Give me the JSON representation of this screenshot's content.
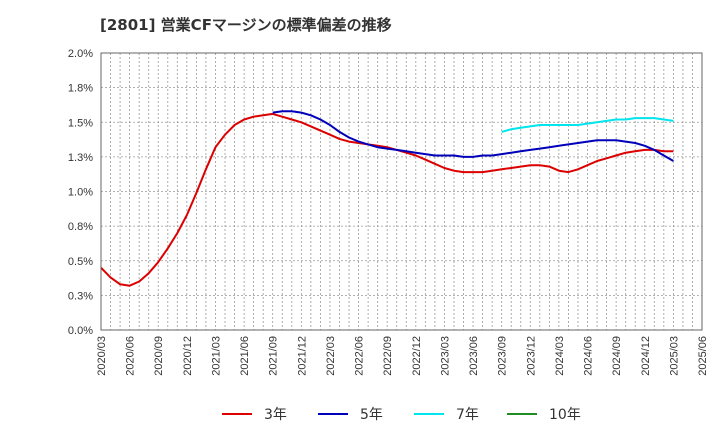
{
  "chart_data": {
    "type": "line",
    "title": "[2801]  営業CFマージンの標準偏差の推移",
    "xlabel": "",
    "ylabel": "",
    "ylim": [
      0.0,
      2.0
    ],
    "y_ticks": [
      "0.0%",
      "0.3%",
      "0.5%",
      "0.8%",
      "1.0%",
      "1.3%",
      "1.5%",
      "1.8%",
      "2.0%"
    ],
    "x_ticks": [
      "2020/03",
      "2020/06",
      "2020/09",
      "2020/12",
      "2021/03",
      "2021/06",
      "2021/09",
      "2021/12",
      "2022/03",
      "2022/06",
      "2022/09",
      "2022/12",
      "2023/03",
      "2023/06",
      "2023/09",
      "2023/12",
      "2024/03",
      "2024/06",
      "2024/09",
      "2024/12",
      "2025/03",
      "2025/06"
    ],
    "grid": true,
    "legend_position": "bottom",
    "series": [
      {
        "name": "3年",
        "color": "#dd0000",
        "x": [
          "2020/03",
          "2020/04",
          "2020/05",
          "2020/06",
          "2020/07",
          "2020/08",
          "2020/09",
          "2020/10",
          "2020/11",
          "2020/12",
          "2021/01",
          "2021/02",
          "2021/03",
          "2021/04",
          "2021/05",
          "2021/06",
          "2021/07",
          "2021/08",
          "2021/09",
          "2021/10",
          "2021/11",
          "2021/12",
          "2022/01",
          "2022/02",
          "2022/03",
          "2022/04",
          "2022/05",
          "2022/06",
          "2022/07",
          "2022/08",
          "2022/09",
          "2022/10",
          "2022/11",
          "2022/12",
          "2023/01",
          "2023/02",
          "2023/03",
          "2023/04",
          "2023/05",
          "2023/06",
          "2023/07",
          "2023/08",
          "2023/09",
          "2023/10",
          "2023/11",
          "2023/12",
          "2024/01",
          "2024/02",
          "2024/03",
          "2024/04",
          "2024/05",
          "2024/06",
          "2024/07",
          "2024/08",
          "2024/09",
          "2024/10",
          "2024/11",
          "2024/12",
          "2025/01",
          "2025/02",
          "2025/03"
        ],
        "values": [
          0.45,
          0.38,
          0.33,
          0.32,
          0.35,
          0.41,
          0.49,
          0.59,
          0.7,
          0.83,
          0.99,
          1.16,
          1.32,
          1.41,
          1.48,
          1.52,
          1.54,
          1.55,
          1.56,
          1.54,
          1.52,
          1.5,
          1.47,
          1.44,
          1.41,
          1.38,
          1.36,
          1.35,
          1.34,
          1.33,
          1.32,
          1.3,
          1.28,
          1.26,
          1.23,
          1.2,
          1.17,
          1.15,
          1.14,
          1.14,
          1.14,
          1.15,
          1.16,
          1.17,
          1.18,
          1.19,
          1.19,
          1.18,
          1.15,
          1.14,
          1.16,
          1.19,
          1.22,
          1.24,
          1.26,
          1.28,
          1.29,
          1.3,
          1.3,
          1.29,
          1.29
        ]
      },
      {
        "name": "5年",
        "color": "#0000bb",
        "x": [
          "2021/09",
          "2021/10",
          "2021/11",
          "2021/12",
          "2022/01",
          "2022/02",
          "2022/03",
          "2022/04",
          "2022/05",
          "2022/06",
          "2022/07",
          "2022/08",
          "2022/09",
          "2022/10",
          "2022/11",
          "2022/12",
          "2023/01",
          "2023/02",
          "2023/03",
          "2023/04",
          "2023/05",
          "2023/06",
          "2023/07",
          "2023/08",
          "2023/09",
          "2023/10",
          "2023/11",
          "2023/12",
          "2024/01",
          "2024/02",
          "2024/03",
          "2024/04",
          "2024/05",
          "2024/06",
          "2024/07",
          "2024/08",
          "2024/09",
          "2024/10",
          "2024/11",
          "2024/12",
          "2025/01",
          "2025/02",
          "2025/03"
        ],
        "values": [
          1.57,
          1.58,
          1.58,
          1.57,
          1.55,
          1.52,
          1.48,
          1.43,
          1.39,
          1.36,
          1.34,
          1.32,
          1.31,
          1.3,
          1.29,
          1.28,
          1.27,
          1.26,
          1.26,
          1.26,
          1.25,
          1.25,
          1.26,
          1.26,
          1.27,
          1.28,
          1.29,
          1.3,
          1.31,
          1.32,
          1.33,
          1.34,
          1.35,
          1.36,
          1.37,
          1.37,
          1.37,
          1.36,
          1.35,
          1.33,
          1.3,
          1.26,
          1.22
        ]
      },
      {
        "name": "7年",
        "color": "#00e5ee",
        "x": [
          "2023/09",
          "2023/10",
          "2023/11",
          "2023/12",
          "2024/01",
          "2024/02",
          "2024/03",
          "2024/04",
          "2024/05",
          "2024/06",
          "2024/07",
          "2024/08",
          "2024/09",
          "2024/10",
          "2024/11",
          "2024/12",
          "2025/01",
          "2025/02",
          "2025/03"
        ],
        "values": [
          1.43,
          1.45,
          1.46,
          1.47,
          1.48,
          1.48,
          1.48,
          1.48,
          1.48,
          1.49,
          1.5,
          1.51,
          1.52,
          1.52,
          1.53,
          1.53,
          1.53,
          1.52,
          1.51
        ]
      },
      {
        "name": "10年",
        "color": "#228b22",
        "x": [],
        "values": []
      }
    ]
  }
}
